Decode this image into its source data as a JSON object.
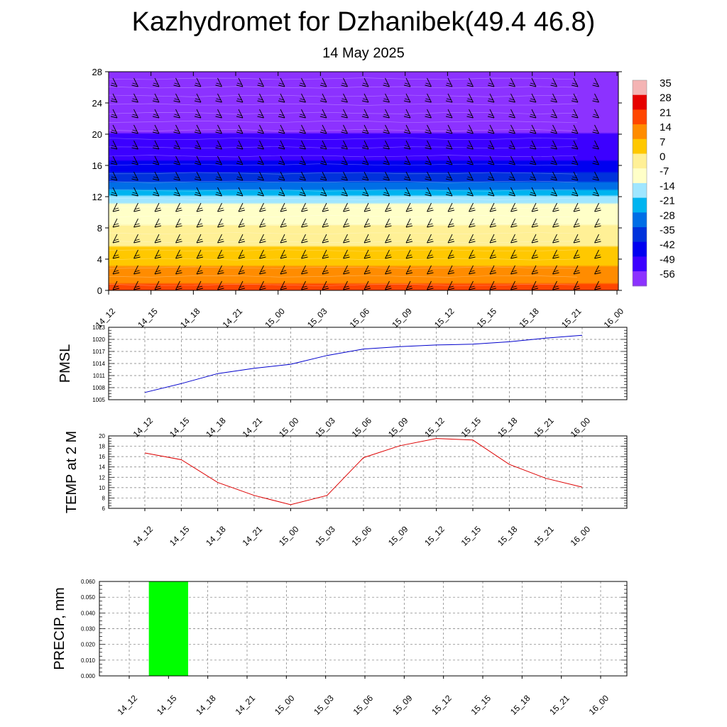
{
  "title": "Kazhydromet for Dzhanibek(49.4 46.8)",
  "subtitle": "14 May 2025",
  "time_labels": [
    "14_12",
    "14_15",
    "14_18",
    "14_21",
    "15_00",
    "15_03",
    "15_06",
    "15_09",
    "15_12",
    "15_15",
    "15_18",
    "15_21",
    "16_00"
  ],
  "chart_data": [
    {
      "type": "heatmap",
      "title": "",
      "xlabel": "",
      "ylabel": "",
      "x": [
        "14_12",
        "14_15",
        "14_18",
        "14_21",
        "15_00",
        "15_03",
        "15_06",
        "15_09",
        "15_12",
        "15_15",
        "15_18",
        "15_21",
        "16_00"
      ],
      "y_ticks": [
        0,
        4,
        8,
        12,
        16,
        20,
        24,
        28
      ],
      "ylim": [
        0,
        28
      ],
      "temperature_profile": {
        "levels": [
          0,
          2,
          4,
          6,
          8,
          10,
          11.5,
          12,
          14,
          16,
          18,
          20,
          24,
          28
        ],
        "values": [
          24,
          17,
          11,
          6,
          1,
          -4,
          -8,
          -14,
          -30,
          -40,
          -47,
          -49,
          -56,
          -62
        ]
      },
      "colorbar": {
        "labels": [
          "35",
          "28",
          "21",
          "14",
          "7",
          "0",
          "-7",
          "-14",
          "-21",
          "-28",
          "-35",
          "-42",
          "-49",
          "-56"
        ],
        "colors": [
          "#f4b4b4",
          "#e60000",
          "#ff4600",
          "#ff8c00",
          "#ffc800",
          "#fff096",
          "#ffffc8",
          "#a0e6ff",
          "#00b4f0",
          "#006ee6",
          "#0032dc",
          "#0000f0",
          "#3c00ff",
          "#8c32ff"
        ]
      },
      "overlay": "wind barbs"
    },
    {
      "type": "line",
      "ylabel": "PMSL",
      "x": [
        "14_12",
        "14_15",
        "14_18",
        "14_21",
        "15_00",
        "15_03",
        "15_06",
        "15_09",
        "15_12",
        "15_15",
        "15_18",
        "15_21",
        "16_00"
      ],
      "series": [
        {
          "values": [
            1006.8,
            1009.0,
            1011.5,
            1012.8,
            1013.8,
            1016.0,
            1017.6,
            1018.2,
            1018.6,
            1018.8,
            1019.4,
            1020.3,
            1021.0
          ]
        }
      ],
      "ylim": [
        1005,
        1023
      ],
      "y_ticks": [
        1005,
        1008,
        1011,
        1014,
        1017,
        1020,
        1023
      ],
      "color": "#0000cc",
      "grid": true
    },
    {
      "type": "line",
      "ylabel": "TEMP at 2 M",
      "x": [
        "14_12",
        "14_15",
        "14_18",
        "14_21",
        "15_00",
        "15_03",
        "15_06",
        "15_09",
        "15_12",
        "15_15",
        "15_18",
        "15_21",
        "16_00"
      ],
      "series": [
        {
          "values": [
            16.7,
            15.4,
            11.0,
            8.5,
            6.7,
            8.5,
            15.8,
            18.1,
            19.5,
            19.2,
            14.5,
            11.8,
            10.1
          ]
        }
      ],
      "ylim": [
        6,
        20
      ],
      "y_ticks": [
        6,
        8,
        10,
        12,
        14,
        16,
        18,
        20
      ],
      "color": "#dd0000",
      "grid": true
    },
    {
      "type": "bar",
      "ylabel": "PRECIP, mm",
      "categories": [
        "14_12",
        "14_15",
        "14_18",
        "14_21",
        "15_00",
        "15_03",
        "15_06",
        "15_09",
        "15_12",
        "15_15",
        "15_18",
        "15_21",
        "16_00"
      ],
      "values": [
        0,
        0.06,
        0,
        0,
        0,
        0,
        0,
        0,
        0,
        0,
        0,
        0,
        0
      ],
      "ylim": [
        0,
        0.06
      ],
      "y_ticks": [
        "0.000",
        "0.010",
        "0.020",
        "0.030",
        "0.040",
        "0.050",
        "0.060"
      ],
      "color": "#00ff00",
      "grid": true
    }
  ]
}
